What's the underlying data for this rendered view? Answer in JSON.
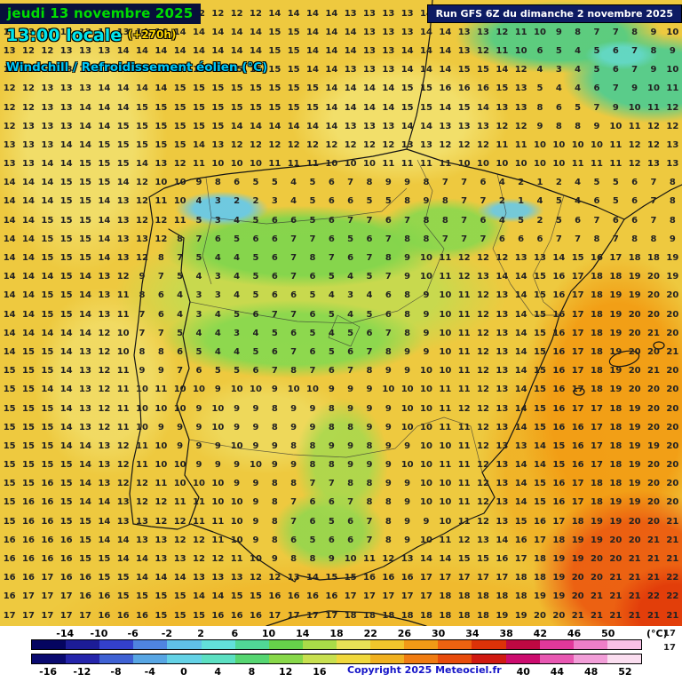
{
  "header": {
    "date_line": "jeudi 13 novembre 2025",
    "time_line": "13:00 locale",
    "offset": "(+270h)",
    "variable_line": "Windchill / Refroidissement éolien (°C)",
    "run_info": "Run GFS 6Z du dimanche 2 novembre 2025"
  },
  "footer": {
    "copyright": "Copyright 2025 Meteociel.fr",
    "unit_label": "(°C)",
    "stray_top": "17",
    "stray_bottom": "17"
  },
  "colorbar": {
    "top_labels": [
      "-14",
      "-10",
      "-6",
      "-2",
      "2",
      "6",
      "10",
      "14",
      "18",
      "22",
      "26",
      "30",
      "34",
      "38",
      "42",
      "46",
      "50"
    ],
    "bottom_labels": [
      "-16",
      "-12",
      "-8",
      "-4",
      "0",
      "4",
      "8",
      "12",
      "16",
      "20",
      "24",
      "28",
      "32",
      "36",
      "40",
      "44",
      "48",
      "52"
    ],
    "top_colors": [
      "#050560",
      "#1c1c96",
      "#3340cc",
      "#4f84e0",
      "#60c0e8",
      "#62e0da",
      "#50d896",
      "#66d24a",
      "#aadc48",
      "#e8e256",
      "#f0c62c",
      "#f09a16",
      "#ee6210",
      "#dc3208",
      "#be0842",
      "#e0389a",
      "#ee7ec8",
      "#f8c0e6"
    ],
    "bottom_colors": [
      "#0a0a70",
      "#2525ab",
      "#3f62d4",
      "#58a6e4",
      "#64d2e6",
      "#5ce0c2",
      "#56d672",
      "#88d84a",
      "#c8e050",
      "#f0d83e",
      "#f0b020",
      "#f07c12",
      "#e84c0c",
      "#d01a12",
      "#cc0c6e",
      "#e858b2",
      "#f29ed8",
      "#fbdef0"
    ]
  },
  "map_grid": {
    "values": [
      [
        13,
        13,
        12,
        12,
        13,
        13,
        13,
        13,
        12,
        13,
        12,
        12,
        12,
        12,
        14,
        14,
        14,
        14,
        13,
        13,
        13,
        13,
        14,
        14,
        13,
        13,
        12,
        12,
        11,
        10,
        9,
        8,
        8,
        9,
        10,
        11
      ],
      [
        13,
        13,
        12,
        12,
        13,
        13,
        13,
        14,
        14,
        14,
        14,
        14,
        14,
        14,
        15,
        15,
        14,
        14,
        14,
        13,
        13,
        13,
        14,
        14,
        13,
        13,
        12,
        11,
        10,
        9,
        8,
        7,
        7,
        8,
        9,
        10
      ],
      [
        13,
        12,
        12,
        13,
        13,
        13,
        14,
        14,
        14,
        14,
        14,
        14,
        14,
        14,
        15,
        15,
        14,
        14,
        14,
        13,
        13,
        14,
        14,
        14,
        13,
        12,
        11,
        10,
        6,
        5,
        4,
        5,
        6,
        7,
        8,
        9
      ],
      [
        12,
        12,
        12,
        13,
        13,
        14,
        14,
        14,
        14,
        14,
        14,
        15,
        15,
        15,
        15,
        15,
        14,
        14,
        13,
        13,
        13,
        14,
        14,
        14,
        15,
        15,
        14,
        12,
        4,
        3,
        4,
        5,
        6,
        7,
        9,
        10
      ],
      [
        12,
        12,
        13,
        13,
        13,
        14,
        14,
        14,
        14,
        15,
        15,
        15,
        15,
        15,
        15,
        15,
        15,
        14,
        14,
        14,
        14,
        15,
        15,
        16,
        16,
        16,
        15,
        13,
        5,
        4,
        4,
        6,
        7,
        9,
        10,
        11
      ],
      [
        12,
        12,
        13,
        13,
        14,
        14,
        14,
        15,
        15,
        15,
        15,
        15,
        15,
        15,
        15,
        15,
        15,
        14,
        14,
        14,
        14,
        15,
        15,
        14,
        15,
        14,
        13,
        13,
        8,
        6,
        5,
        7,
        9,
        10,
        11,
        12
      ],
      [
        12,
        13,
        13,
        13,
        14,
        14,
        15,
        15,
        15,
        15,
        15,
        15,
        14,
        14,
        14,
        14,
        14,
        14,
        13,
        13,
        13,
        14,
        14,
        13,
        13,
        13,
        12,
        12,
        9,
        8,
        8,
        9,
        10,
        11,
        12,
        12
      ],
      [
        13,
        13,
        13,
        14,
        14,
        15,
        15,
        15,
        15,
        15,
        14,
        13,
        12,
        12,
        12,
        12,
        12,
        12,
        12,
        12,
        12,
        13,
        13,
        12,
        12,
        12,
        11,
        11,
        10,
        10,
        10,
        10,
        11,
        12,
        12,
        13
      ],
      [
        13,
        13,
        14,
        14,
        15,
        15,
        15,
        14,
        13,
        12,
        11,
        10,
        10,
        10,
        11,
        11,
        11,
        10,
        10,
        10,
        11,
        11,
        11,
        11,
        10,
        10,
        10,
        10,
        10,
        10,
        11,
        11,
        11,
        12,
        13,
        13
      ],
      [
        14,
        14,
        14,
        15,
        15,
        15,
        14,
        12,
        10,
        10,
        9,
        8,
        6,
        5,
        5,
        4,
        5,
        6,
        7,
        8,
        9,
        9,
        8,
        7,
        7,
        6,
        4,
        2,
        1,
        2,
        4,
        5,
        5,
        6,
        7,
        8
      ],
      [
        14,
        14,
        14,
        15,
        15,
        14,
        13,
        12,
        11,
        10,
        4,
        3,
        2,
        2,
        3,
        4,
        5,
        6,
        6,
        5,
        5,
        8,
        9,
        8,
        7,
        7,
        2,
        1,
        4,
        5,
        4,
        6,
        5,
        6,
        7,
        8
      ],
      [
        14,
        14,
        15,
        15,
        15,
        14,
        13,
        12,
        12,
        11,
        5,
        3,
        4,
        5,
        6,
        6,
        5,
        6,
        7,
        7,
        6,
        7,
        8,
        8,
        7,
        6,
        4,
        5,
        2,
        5,
        6,
        7,
        6,
        6,
        7,
        8
      ],
      [
        14,
        14,
        15,
        15,
        15,
        14,
        13,
        13,
        12,
        8,
        7,
        6,
        5,
        6,
        6,
        7,
        7,
        6,
        5,
        6,
        7,
        8,
        8,
        7,
        7,
        7,
        6,
        6,
        6,
        7,
        7,
        8,
        7,
        8,
        8,
        9
      ],
      [
        14,
        14,
        15,
        15,
        15,
        14,
        13,
        12,
        8,
        7,
        5,
        4,
        4,
        5,
        6,
        7,
        8,
        7,
        6,
        7,
        8,
        9,
        10,
        11,
        12,
        12,
        12,
        13,
        13,
        14,
        15,
        16,
        17,
        18,
        18,
        19
      ],
      [
        14,
        14,
        14,
        15,
        14,
        13,
        12,
        9,
        7,
        5,
        4,
        3,
        4,
        5,
        6,
        7,
        6,
        5,
        4,
        5,
        7,
        9,
        10,
        11,
        12,
        13,
        14,
        14,
        15,
        16,
        17,
        18,
        18,
        19,
        20,
        19
      ],
      [
        14,
        14,
        15,
        15,
        14,
        13,
        11,
        8,
        6,
        4,
        3,
        3,
        4,
        5,
        6,
        6,
        5,
        4,
        3,
        4,
        6,
        8,
        9,
        10,
        11,
        12,
        13,
        14,
        15,
        16,
        17,
        18,
        19,
        19,
        20,
        20
      ],
      [
        14,
        14,
        15,
        15,
        14,
        13,
        11,
        7,
        6,
        4,
        3,
        4,
        5,
        6,
        7,
        7,
        6,
        5,
        4,
        5,
        6,
        8,
        9,
        10,
        11,
        12,
        13,
        14,
        15,
        16,
        17,
        18,
        19,
        20,
        20,
        20
      ],
      [
        14,
        14,
        14,
        14,
        14,
        12,
        10,
        7,
        7,
        5,
        4,
        4,
        3,
        4,
        5,
        6,
        5,
        4,
        5,
        6,
        7,
        8,
        9,
        10,
        11,
        12,
        13,
        14,
        15,
        16,
        17,
        18,
        19,
        20,
        21,
        20
      ],
      [
        14,
        15,
        15,
        14,
        13,
        12,
        10,
        8,
        8,
        6,
        5,
        4,
        4,
        5,
        6,
        7,
        6,
        5,
        6,
        7,
        8,
        9,
        9,
        10,
        11,
        12,
        13,
        14,
        15,
        16,
        17,
        18,
        19,
        20,
        20,
        21
      ],
      [
        15,
        15,
        15,
        14,
        13,
        12,
        11,
        9,
        9,
        7,
        6,
        5,
        5,
        6,
        7,
        8,
        7,
        6,
        7,
        8,
        9,
        9,
        10,
        10,
        11,
        12,
        13,
        14,
        15,
        16,
        17,
        18,
        19,
        20,
        21,
        20
      ],
      [
        15,
        15,
        14,
        14,
        13,
        12,
        11,
        10,
        11,
        10,
        10,
        9,
        10,
        10,
        9,
        10,
        10,
        9,
        9,
        9,
        10,
        10,
        10,
        11,
        11,
        12,
        13,
        14,
        15,
        16,
        17,
        18,
        19,
        20,
        20,
        20
      ],
      [
        15,
        15,
        15,
        14,
        13,
        12,
        11,
        10,
        10,
        10,
        9,
        10,
        9,
        9,
        8,
        9,
        9,
        8,
        9,
        9,
        9,
        10,
        10,
        11,
        12,
        12,
        13,
        14,
        15,
        16,
        17,
        17,
        18,
        19,
        20,
        20
      ],
      [
        15,
        15,
        15,
        14,
        13,
        12,
        11,
        10,
        9,
        9,
        9,
        10,
        9,
        9,
        8,
        9,
        9,
        8,
        8,
        9,
        9,
        10,
        10,
        11,
        11,
        12,
        13,
        14,
        15,
        16,
        16,
        17,
        18,
        19,
        20,
        20
      ],
      [
        15,
        15,
        15,
        14,
        14,
        13,
        12,
        11,
        10,
        9,
        9,
        9,
        10,
        9,
        9,
        8,
        8,
        9,
        9,
        8,
        9,
        9,
        10,
        10,
        11,
        12,
        13,
        13,
        14,
        15,
        16,
        17,
        18,
        19,
        19,
        20
      ],
      [
        15,
        15,
        15,
        15,
        14,
        13,
        12,
        11,
        10,
        10,
        9,
        9,
        9,
        10,
        9,
        9,
        8,
        8,
        9,
        9,
        9,
        10,
        10,
        11,
        11,
        12,
        13,
        14,
        14,
        15,
        16,
        17,
        18,
        19,
        20,
        20
      ],
      [
        15,
        15,
        16,
        15,
        14,
        13,
        12,
        12,
        11,
        10,
        10,
        10,
        9,
        9,
        8,
        8,
        7,
        7,
        8,
        8,
        9,
        9,
        10,
        10,
        11,
        12,
        13,
        14,
        15,
        16,
        17,
        18,
        18,
        19,
        20,
        20
      ],
      [
        15,
        16,
        16,
        15,
        14,
        14,
        13,
        12,
        12,
        11,
        11,
        10,
        10,
        9,
        8,
        7,
        6,
        6,
        7,
        8,
        8,
        9,
        10,
        10,
        11,
        12,
        13,
        14,
        15,
        16,
        17,
        18,
        19,
        19,
        20,
        20
      ],
      [
        15,
        16,
        16,
        15,
        15,
        14,
        13,
        13,
        12,
        12,
        11,
        11,
        10,
        9,
        8,
        7,
        6,
        5,
        6,
        7,
        8,
        9,
        9,
        10,
        11,
        12,
        13,
        15,
        16,
        17,
        18,
        19,
        19,
        20,
        20,
        21
      ],
      [
        16,
        16,
        16,
        16,
        15,
        14,
        14,
        13,
        13,
        12,
        12,
        11,
        10,
        9,
        8,
        6,
        5,
        6,
        6,
        7,
        8,
        9,
        10,
        11,
        12,
        13,
        14,
        16,
        17,
        18,
        19,
        19,
        20,
        20,
        21,
        21
      ],
      [
        16,
        16,
        16,
        16,
        15,
        15,
        14,
        14,
        13,
        13,
        12,
        12,
        11,
        10,
        9,
        8,
        8,
        9,
        10,
        11,
        12,
        13,
        14,
        14,
        15,
        15,
        16,
        17,
        18,
        19,
        19,
        20,
        20,
        21,
        21,
        21
      ],
      [
        16,
        16,
        17,
        16,
        16,
        15,
        15,
        14,
        14,
        14,
        13,
        13,
        13,
        12,
        12,
        13,
        14,
        15,
        15,
        16,
        16,
        16,
        17,
        17,
        17,
        17,
        17,
        18,
        18,
        19,
        20,
        20,
        21,
        21,
        21,
        22
      ],
      [
        16,
        17,
        17,
        17,
        16,
        16,
        15,
        15,
        15,
        15,
        14,
        14,
        15,
        15,
        16,
        16,
        16,
        16,
        17,
        17,
        17,
        17,
        17,
        18,
        18,
        18,
        18,
        18,
        19,
        19,
        20,
        21,
        21,
        21,
        22,
        22
      ],
      [
        17,
        17,
        17,
        17,
        17,
        16,
        16,
        16,
        15,
        15,
        15,
        16,
        16,
        16,
        17,
        17,
        17,
        17,
        18,
        18,
        18,
        18,
        18,
        18,
        18,
        18,
        19,
        19,
        20,
        20,
        21,
        21,
        21,
        21,
        21,
        21
      ]
    ]
  }
}
